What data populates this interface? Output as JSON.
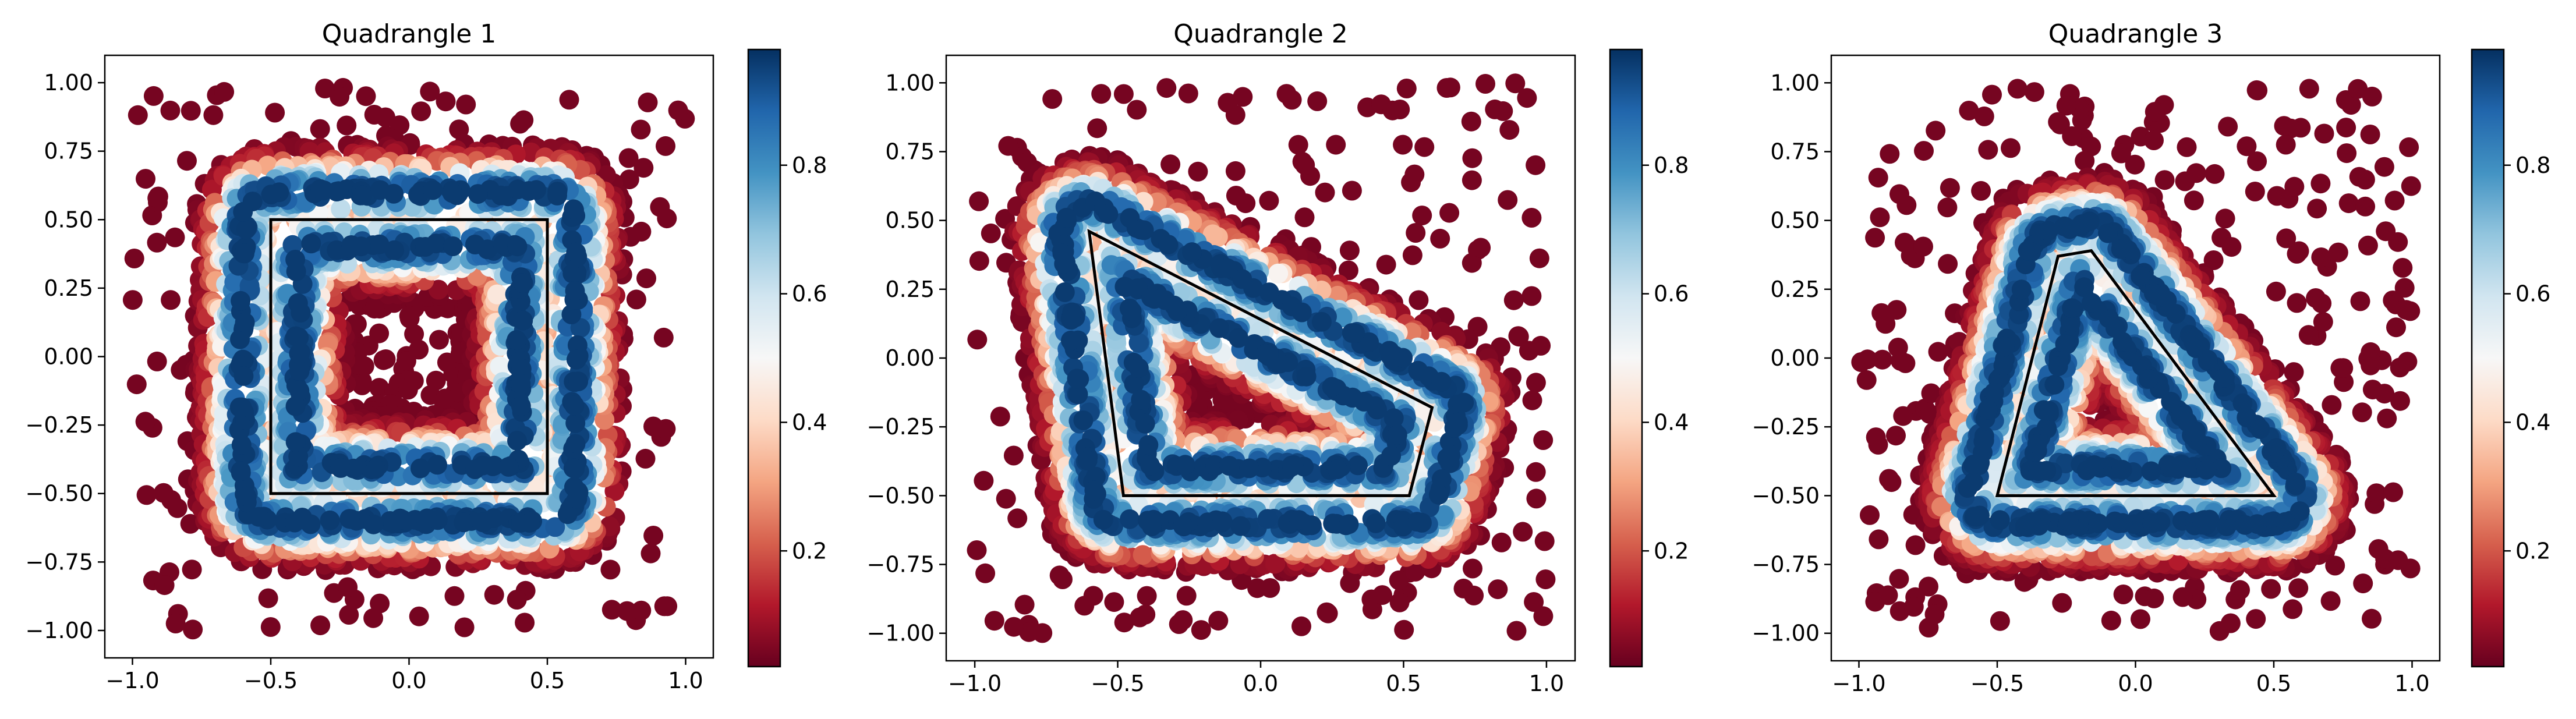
{
  "figure": {
    "panels_count": 3,
    "colormap": "RdBu",
    "colormap_stops": [
      "#67001f",
      "#b2182b",
      "#d6604d",
      "#f4a582",
      "#fddbc7",
      "#f7f7f7",
      "#d1e5f0",
      "#92c5de",
      "#4393c3",
      "#2166ac",
      "#053061"
    ],
    "outline_color": "#000000"
  },
  "chart_data": [
    {
      "type": "scatter",
      "title": "Quadrangle 1",
      "xlim": [
        -1.1,
        1.1
      ],
      "ylim": [
        -1.1,
        1.1
      ],
      "xticks": [
        -1.0,
        -0.5,
        0.0,
        0.5,
        1.0
      ],
      "xtick_labels": [
        "−1.0",
        "−0.5",
        "0.0",
        "0.5",
        "1.0"
      ],
      "yticks": [
        -1.0,
        -0.75,
        -0.5,
        -0.25,
        0.0,
        0.25,
        0.5,
        0.75,
        1.0
      ],
      "ytick_labels": [
        "−1.00",
        "−0.75",
        "−0.50",
        "−0.25",
        "0.00",
        "0.25",
        "0.50",
        "0.75",
        "1.00"
      ],
      "grid": false,
      "quadrangle": [
        [
          -0.5,
          0.5
        ],
        [
          0.5,
          0.5
        ],
        [
          0.5,
          -0.5
        ],
        [
          -0.5,
          -0.5
        ]
      ],
      "point_pattern": "dense ring of points around the quadrangle edge, value peaking near the edge, sparse low-value points elsewhere",
      "colorbar": {
        "range": [
          0.02,
          0.98
        ],
        "ticks": [
          0.2,
          0.4,
          0.6,
          0.8
        ],
        "tick_labels": [
          "0.2",
          "0.4",
          "0.6",
          "0.8"
        ]
      }
    },
    {
      "type": "scatter",
      "title": "Quadrangle 2",
      "xlim": [
        -1.1,
        1.1
      ],
      "ylim": [
        -1.1,
        1.1
      ],
      "xticks": [
        -1.0,
        -0.5,
        0.0,
        0.5,
        1.0
      ],
      "xtick_labels": [
        "−1.0",
        "−0.5",
        "0.0",
        "0.5",
        "1.0"
      ],
      "yticks": [
        -1.0,
        -0.75,
        -0.5,
        -0.25,
        0.0,
        0.25,
        0.5,
        0.75,
        1.0
      ],
      "ytick_labels": [
        "−1.00",
        "−0.75",
        "−0.50",
        "−0.25",
        "0.00",
        "0.25",
        "0.50",
        "0.75",
        "1.00"
      ],
      "grid": false,
      "quadrangle": [
        [
          -0.6,
          0.46
        ],
        [
          0.6,
          -0.18
        ],
        [
          0.52,
          -0.5
        ],
        [
          -0.48,
          -0.5
        ]
      ],
      "point_pattern": "dense band of points around the quadrangle edge, value peaking near the edge, sparse low-value points elsewhere",
      "colorbar": {
        "range": [
          0.02,
          0.98
        ],
        "ticks": [
          0.2,
          0.4,
          0.6,
          0.8
        ],
        "tick_labels": [
          "0.2",
          "0.4",
          "0.6",
          "0.8"
        ]
      }
    },
    {
      "type": "scatter",
      "title": "Quadrangle 3",
      "xlim": [
        -1.1,
        1.1
      ],
      "ylim": [
        -1.1,
        1.1
      ],
      "xticks": [
        -1.0,
        -0.5,
        0.0,
        0.5,
        1.0
      ],
      "xtick_labels": [
        "−1.0",
        "−0.5",
        "0.0",
        "0.5",
        "1.0"
      ],
      "yticks": [
        -1.0,
        -0.75,
        -0.5,
        -0.25,
        0.0,
        0.25,
        0.5,
        0.75,
        1.0
      ],
      "ytick_labels": [
        "−1.00",
        "−0.75",
        "−0.50",
        "−0.25",
        "0.00",
        "0.25",
        "0.50",
        "0.75",
        "1.00"
      ],
      "grid": false,
      "quadrangle": [
        [
          -0.28,
          0.37
        ],
        [
          -0.16,
          0.39
        ],
        [
          0.5,
          -0.5
        ],
        [
          -0.5,
          -0.5
        ]
      ],
      "point_pattern": "dense band of points around the quadrangle edge, value peaking near the edge, sparse low-value points elsewhere",
      "colorbar": {
        "range": [
          0.02,
          0.98
        ],
        "ticks": [
          0.2,
          0.4,
          0.6,
          0.8
        ],
        "tick_labels": [
          "0.2",
          "0.4",
          "0.6",
          "0.8"
        ]
      }
    }
  ]
}
